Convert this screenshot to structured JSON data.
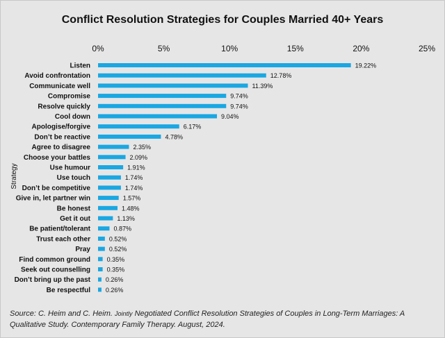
{
  "chart_data": {
    "type": "bar",
    "orientation": "horizontal",
    "title": "Conflict Resolution Strategies for Couples Married 40+ Years",
    "ylabel": "Strategy",
    "xlabel": "",
    "xlim": [
      0,
      25
    ],
    "x_ticks": [
      "0%",
      "5%",
      "10%",
      "15%",
      "20%",
      "25%"
    ],
    "x_axis_position": "top",
    "grid": false,
    "bar_color": "#1aa7e2",
    "categories": [
      "Listen",
      "Avoid confrontation",
      "Communicate well",
      "Compromise",
      "Resolve quickly",
      "Cool down",
      "Apologise/forgive",
      "Don’t be reactive",
      "Agree to disagree",
      "Choose your battles",
      "Use humour",
      "Use touch",
      "Don’t be competitive",
      "Give in, let partner win",
      "Be honest",
      "Get it out",
      "Be patient/tolerant",
      "Trust each other",
      "Pray",
      "Find common ground",
      "Seek out counselling",
      "Don’t bring up the past",
      "Be respectful"
    ],
    "values": [
      19.22,
      12.78,
      11.39,
      9.74,
      9.74,
      9.04,
      6.17,
      4.78,
      2.35,
      2.09,
      1.91,
      1.74,
      1.74,
      1.57,
      1.48,
      1.13,
      0.87,
      0.52,
      0.52,
      0.35,
      0.35,
      0.26,
      0.26
    ],
    "data_labels": [
      "19.22%",
      "12.78%",
      "11.39%",
      "9.74%",
      "9.74%",
      "9.04%",
      "6.17%",
      "4.78%",
      "2.35%",
      "2.09%",
      "1.91%",
      "1.74%",
      "1.74%",
      "1.57%",
      "1.48%",
      "1.13%",
      "0.87%",
      "0.52%",
      "0.52%",
      "0.35%",
      "0.35%",
      "0.26%",
      "0.26%"
    ]
  },
  "source": {
    "prefix": "Source: C. Heim and C. Heim.",
    "small_word": "Jointly",
    "rest": "Negotiated Conflict Resolution Strategies of Couples in Long-Term Marriages: A Qualitative Study. Contemporary Family Therapy. August, 2024."
  }
}
